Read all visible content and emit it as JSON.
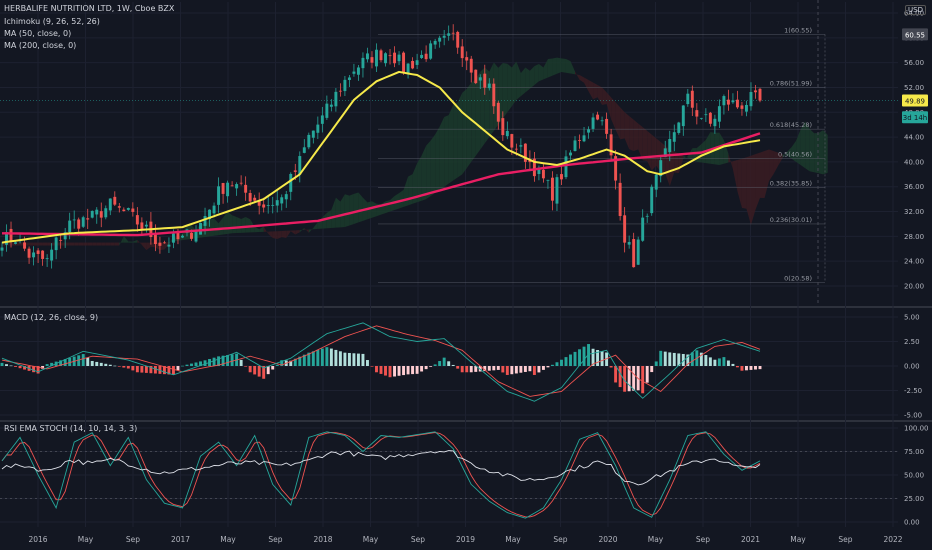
{
  "legend": {
    "title": "HERBALIFE NUTRITION LTD, 1W, Cboe BZX",
    "ichimoku": "Ichimoku (9, 26, 52, 26)",
    "ma50": "MA (50, close, 0)",
    "ma200": "MA (200, close, 0)",
    "macd": "MACD (12, 26, close, 9)",
    "rsi": "RSI EMA STOCH (14, 10, 14, 3, 3)"
  },
  "currency": "USD",
  "colors": {
    "bg": "#131722",
    "up": "#26a69a",
    "down": "#ef5350",
    "ma50": "#f6e94a",
    "ma200": "#e91e63",
    "grid": "#2a2e39",
    "text": "#b2b5be",
    "cloud_up": "#1b3b2b",
    "cloud_down": "#3b1c22"
  },
  "chart_data": [
    {
      "type": "candlestick",
      "panel": "price",
      "x_labels": [
        "2016",
        "May",
        "Sep",
        "2017",
        "May",
        "Sep",
        "2018",
        "May",
        "Sep",
        "2019",
        "May",
        "Sep",
        "2020",
        "May",
        "Sep",
        "2021",
        "May",
        "Sep",
        "2022"
      ],
      "y_ticks": [
        "64.00",
        "60.00",
        "56.00",
        "52.00",
        "48.00",
        "44.00",
        "40.00",
        "36.00",
        "32.00",
        "28.00",
        "24.00",
        "20.00"
      ],
      "ylim": [
        19,
        64.5
      ],
      "price_badges": [
        "60.55",
        "49.89",
        "3d 14h"
      ],
      "fib_levels": [
        {
          "label": "1(60.55)",
          "value": 60.55
        },
        {
          "label": "0.786(51.99)",
          "value": 51.99
        },
        {
          "label": "0.618(45.28)",
          "value": 45.28
        },
        {
          "label": "0.5(40.56)",
          "value": 40.56
        },
        {
          "label": "0.382(35.85)",
          "value": 35.85
        },
        {
          "label": "0.236(30.01)",
          "value": 30.01
        },
        {
          "label": "0(20.58)",
          "value": 20.58
        }
      ],
      "close_anchors": [
        [
          0,
          27.5
        ],
        [
          3,
          27.8
        ],
        [
          6,
          25
        ],
        [
          10,
          24
        ],
        [
          12,
          27
        ],
        [
          15,
          30
        ],
        [
          20,
          31
        ],
        [
          24,
          33
        ],
        [
          28,
          31.5
        ],
        [
          32,
          29
        ],
        [
          35,
          27
        ],
        [
          40,
          27.5
        ],
        [
          44,
          30
        ],
        [
          48,
          35
        ],
        [
          50,
          37
        ],
        [
          54,
          35
        ],
        [
          58,
          33
        ],
        [
          62,
          34
        ],
        [
          66,
          40
        ],
        [
          68,
          44
        ],
        [
          71,
          47
        ],
        [
          75,
          52
        ],
        [
          78,
          55
        ],
        [
          82,
          57
        ],
        [
          86,
          58
        ],
        [
          89,
          55
        ],
        [
          93,
          57
        ],
        [
          97,
          59
        ],
        [
          100,
          60
        ],
        [
          103,
          57
        ],
        [
          105,
          54
        ],
        [
          108,
          52
        ],
        [
          110,
          46
        ],
        [
          113,
          43
        ],
        [
          116,
          41
        ],
        [
          119,
          38
        ],
        [
          122,
          35
        ],
        [
          124,
          38
        ],
        [
          127,
          43
        ],
        [
          130,
          46
        ],
        [
          132,
          48
        ],
        [
          134,
          44
        ],
        [
          136,
          37
        ],
        [
          138,
          28
        ],
        [
          140,
          24
        ],
        [
          142,
          30
        ],
        [
          144,
          35
        ],
        [
          147,
          41
        ],
        [
          150,
          47
        ],
        [
          152,
          50
        ],
        [
          154,
          48
        ],
        [
          157,
          46
        ],
        [
          160,
          50
        ],
        [
          163,
          49
        ],
        [
          166,
          50
        ],
        [
          168,
          49.89
        ]
      ],
      "ma50_anchors": [
        [
          0,
          27
        ],
        [
          15,
          28.5
        ],
        [
          30,
          29
        ],
        [
          40,
          29.5
        ],
        [
          50,
          32
        ],
        [
          58,
          34
        ],
        [
          66,
          38
        ],
        [
          72,
          44
        ],
        [
          78,
          50
        ],
        [
          83,
          53
        ],
        [
          88,
          54.5
        ],
        [
          92,
          54
        ],
        [
          97,
          52
        ],
        [
          102,
          48
        ],
        [
          107,
          45
        ],
        [
          112,
          42
        ],
        [
          118,
          40
        ],
        [
          123,
          39.5
        ],
        [
          128,
          40.5
        ],
        [
          134,
          42
        ],
        [
          138,
          41
        ],
        [
          143,
          38.5
        ],
        [
          146,
          38
        ],
        [
          150,
          39
        ],
        [
          155,
          41
        ],
        [
          160,
          42.5
        ],
        [
          168,
          43.5
        ]
      ],
      "ma200_anchors": [
        [
          0,
          28.5
        ],
        [
          30,
          28.2
        ],
        [
          50,
          29.3
        ],
        [
          70,
          30.5
        ],
        [
          90,
          34
        ],
        [
          110,
          38
        ],
        [
          125,
          39.5
        ],
        [
          140,
          40.6
        ],
        [
          155,
          41.5
        ],
        [
          168,
          44.6
        ]
      ]
    },
    {
      "type": "bar",
      "panel": "macd",
      "y_ticks": [
        "5.00",
        "2.50",
        "0.00",
        "-2.50",
        "-5.00"
      ],
      "ylim": [
        -5.5,
        5.5
      ],
      "macd_anchors": [
        [
          0,
          0.8
        ],
        [
          8,
          -0.6
        ],
        [
          18,
          1.5
        ],
        [
          28,
          0.6
        ],
        [
          38,
          -0.9
        ],
        [
          45,
          0.2
        ],
        [
          52,
          1.4
        ],
        [
          58,
          -0.2
        ],
        [
          64,
          0.8
        ],
        [
          72,
          3.3
        ],
        [
          80,
          4.4
        ],
        [
          86,
          3.0
        ],
        [
          92,
          2.5
        ],
        [
          98,
          2.8
        ],
        [
          104,
          0.4
        ],
        [
          112,
          -2.6
        ],
        [
          118,
          -3.6
        ],
        [
          124,
          -2.2
        ],
        [
          130,
          1.2
        ],
        [
          134,
          1.6
        ],
        [
          138,
          -1.5
        ],
        [
          142,
          -3.3
        ],
        [
          148,
          -0.8
        ],
        [
          154,
          1.8
        ],
        [
          160,
          2.7
        ],
        [
          168,
          1.5
        ]
      ],
      "signal_anchors": [
        [
          0,
          0.6
        ],
        [
          10,
          -0.3
        ],
        [
          20,
          1.0
        ],
        [
          30,
          0.7
        ],
        [
          40,
          -0.6
        ],
        [
          48,
          0.1
        ],
        [
          55,
          1.0
        ],
        [
          62,
          0.1
        ],
        [
          68,
          1.2
        ],
        [
          76,
          3.0
        ],
        [
          83,
          4.1
        ],
        [
          90,
          3.2
        ],
        [
          96,
          2.6
        ],
        [
          102,
          1.6
        ],
        [
          110,
          -1.6
        ],
        [
          117,
          -3.1
        ],
        [
          124,
          -2.6
        ],
        [
          131,
          0.2
        ],
        [
          136,
          1.1
        ],
        [
          141,
          -1.3
        ],
        [
          146,
          -2.6
        ],
        [
          152,
          0.2
        ],
        [
          158,
          2.0
        ],
        [
          164,
          2.4
        ],
        [
          168,
          1.7
        ]
      ]
    },
    {
      "type": "line",
      "panel": "rsi",
      "y_ticks": [
        "100.00",
        "75.00",
        "50.00",
        "25.00",
        "0.00"
      ],
      "ylim": [
        -5,
        100
      ],
      "rsi_anchors": [
        [
          0,
          58
        ],
        [
          5,
          60
        ],
        [
          10,
          54
        ],
        [
          15,
          66
        ],
        [
          20,
          62
        ],
        [
          25,
          67
        ],
        [
          30,
          59
        ],
        [
          35,
          52
        ],
        [
          40,
          55
        ],
        [
          45,
          58
        ],
        [
          50,
          62
        ],
        [
          56,
          63
        ],
        [
          62,
          60
        ],
        [
          68,
          65
        ],
        [
          72,
          73
        ],
        [
          76,
          74
        ],
        [
          80,
          71
        ],
        [
          84,
          68
        ],
        [
          90,
          72
        ],
        [
          96,
          76
        ],
        [
          100,
          74
        ],
        [
          104,
          62
        ],
        [
          108,
          55
        ],
        [
          112,
          49
        ],
        [
          116,
          45
        ],
        [
          120,
          46
        ],
        [
          124,
          52
        ],
        [
          128,
          58
        ],
        [
          132,
          64
        ],
        [
          135,
          59
        ],
        [
          138,
          45
        ],
        [
          141,
          41
        ],
        [
          145,
          48
        ],
        [
          150,
          58
        ],
        [
          154,
          64
        ],
        [
          158,
          68
        ],
        [
          162,
          60
        ],
        [
          165,
          57
        ],
        [
          168,
          62
        ]
      ],
      "k_anchors": [
        [
          0,
          65
        ],
        [
          4,
          90
        ],
        [
          8,
          50
        ],
        [
          12,
          15
        ],
        [
          16,
          85
        ],
        [
          20,
          95
        ],
        [
          24,
          60
        ],
        [
          28,
          90
        ],
        [
          32,
          45
        ],
        [
          36,
          20
        ],
        [
          40,
          15
        ],
        [
          44,
          70
        ],
        [
          48,
          85
        ],
        [
          52,
          60
        ],
        [
          56,
          92
        ],
        [
          60,
          40
        ],
        [
          64,
          18
        ],
        [
          68,
          90
        ],
        [
          72,
          96
        ],
        [
          76,
          92
        ],
        [
          80,
          75
        ],
        [
          84,
          92
        ],
        [
          88,
          90
        ],
        [
          92,
          93
        ],
        [
          96,
          96
        ],
        [
          100,
          78
        ],
        [
          104,
          40
        ],
        [
          108,
          22
        ],
        [
          112,
          10
        ],
        [
          116,
          4
        ],
        [
          120,
          15
        ],
        [
          124,
          45
        ],
        [
          128,
          88
        ],
        [
          132,
          95
        ],
        [
          136,
          60
        ],
        [
          140,
          15
        ],
        [
          144,
          5
        ],
        [
          148,
          45
        ],
        [
          152,
          92
        ],
        [
          156,
          96
        ],
        [
          160,
          72
        ],
        [
          164,
          55
        ],
        [
          168,
          65
        ]
      ]
    }
  ]
}
